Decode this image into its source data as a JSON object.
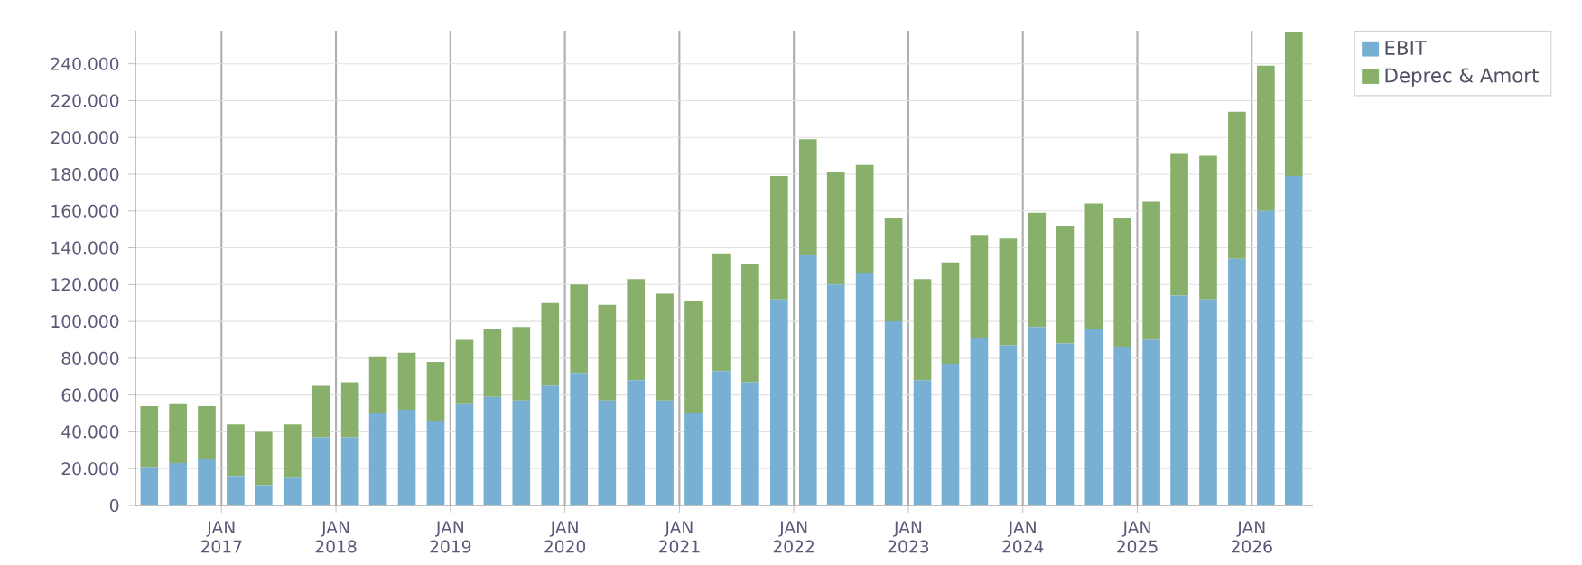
{
  "chart_data": {
    "type": "bar",
    "stacked": true,
    "grid": true,
    "legend": "top right",
    "x": [
      "2016-05-15",
      "2016-08-15",
      "2016-11-15",
      "2017-02-15",
      "2017-05-15",
      "2017-08-15",
      "2017-11-15",
      "2018-02-15",
      "2018-05-15",
      "2018-08-15",
      "2018-11-15",
      "2019-02-15",
      "2019-05-15",
      "2019-08-15",
      "2019-11-15",
      "2020-02-15",
      "2020-05-15",
      "2020-08-15",
      "2020-11-15",
      "2021-02-15",
      "2021-05-15",
      "2021-08-15",
      "2021-11-15",
      "2022-02-15",
      "2022-05-15",
      "2022-08-15",
      "2022-11-15",
      "2023-02-15",
      "2023-05-15",
      "2023-08-15",
      "2023-11-15",
      "2024-02-15",
      "2024-05-15",
      "2024-08-15",
      "2024-11-15",
      "2025-02-15",
      "2025-05-15",
      "2025-08-15",
      "2025-11-15",
      "2026-02-15",
      "2026-05-15"
    ],
    "series": [
      {
        "name": "EBIT",
        "color": "#77b0d3",
        "values": [
          21000,
          23000,
          25000,
          16000,
          11000,
          15000,
          37000,
          37000,
          50000,
          52000,
          46000,
          55000,
          59000,
          57000,
          65000,
          72000,
          57000,
          68000,
          57000,
          50000,
          73000,
          67000,
          112000,
          136000,
          120000,
          126000,
          100000,
          68000,
          77000,
          91000,
          87000,
          97000,
          88000,
          96000,
          86000,
          90000,
          114000,
          112000,
          134000,
          160000,
          179000
        ]
      },
      {
        "name": "Deprec & Amort",
        "color": "#88b06a",
        "values": [
          33000,
          32000,
          29000,
          28000,
          29000,
          29000,
          28000,
          30000,
          31000,
          31000,
          32000,
          35000,
          37000,
          40000,
          45000,
          48000,
          52000,
          55000,
          58000,
          61000,
          64000,
          64000,
          67000,
          63000,
          61000,
          59000,
          56000,
          55000,
          55000,
          56000,
          58000,
          62000,
          64000,
          68000,
          70000,
          75000,
          77000,
          78000,
          80000,
          79000,
          78000
        ]
      }
    ],
    "xlim": [
      "2016-04-01",
      "2026-07-15"
    ],
    "xticks": [
      {
        "value": "2017-01-01",
        "label": "JAN 2017"
      },
      {
        "value": "2018-01-01",
        "label": "JAN 2018"
      },
      {
        "value": "2019-01-01",
        "label": "JAN 2019"
      },
      {
        "value": "2020-01-01",
        "label": "JAN 2020"
      },
      {
        "value": "2021-01-01",
        "label": "JAN 2021"
      },
      {
        "value": "2022-01-01",
        "label": "JAN 2022"
      },
      {
        "value": "2023-01-01",
        "label": "JAN 2023"
      },
      {
        "value": "2024-01-01",
        "label": "JAN 2024"
      },
      {
        "value": "2025-01-01",
        "label": "JAN 2025"
      },
      {
        "value": "2026-01-01",
        "label": "JAN 2026"
      }
    ],
    "ylim": [
      0,
      258000
    ],
    "yticks": [
      0,
      {
        "value": 20000,
        "label": "20.000"
      },
      {
        "value": 40000,
        "label": "40.000"
      },
      {
        "value": 60000,
        "label": "60.000"
      },
      {
        "value": 80000,
        "label": "80.000"
      },
      {
        "value": 100000,
        "label": "100.000"
      },
      {
        "value": 120000,
        "label": "120.000"
      },
      {
        "value": 140000,
        "label": "140.000"
      },
      {
        "value": 160000,
        "label": "160.000"
      },
      {
        "value": 180000,
        "label": "180.000"
      },
      {
        "value": 200000,
        "label": "200.000"
      },
      {
        "value": 220000,
        "label": "220.000"
      },
      {
        "value": 240000,
        "label": "240.000"
      }
    ]
  }
}
